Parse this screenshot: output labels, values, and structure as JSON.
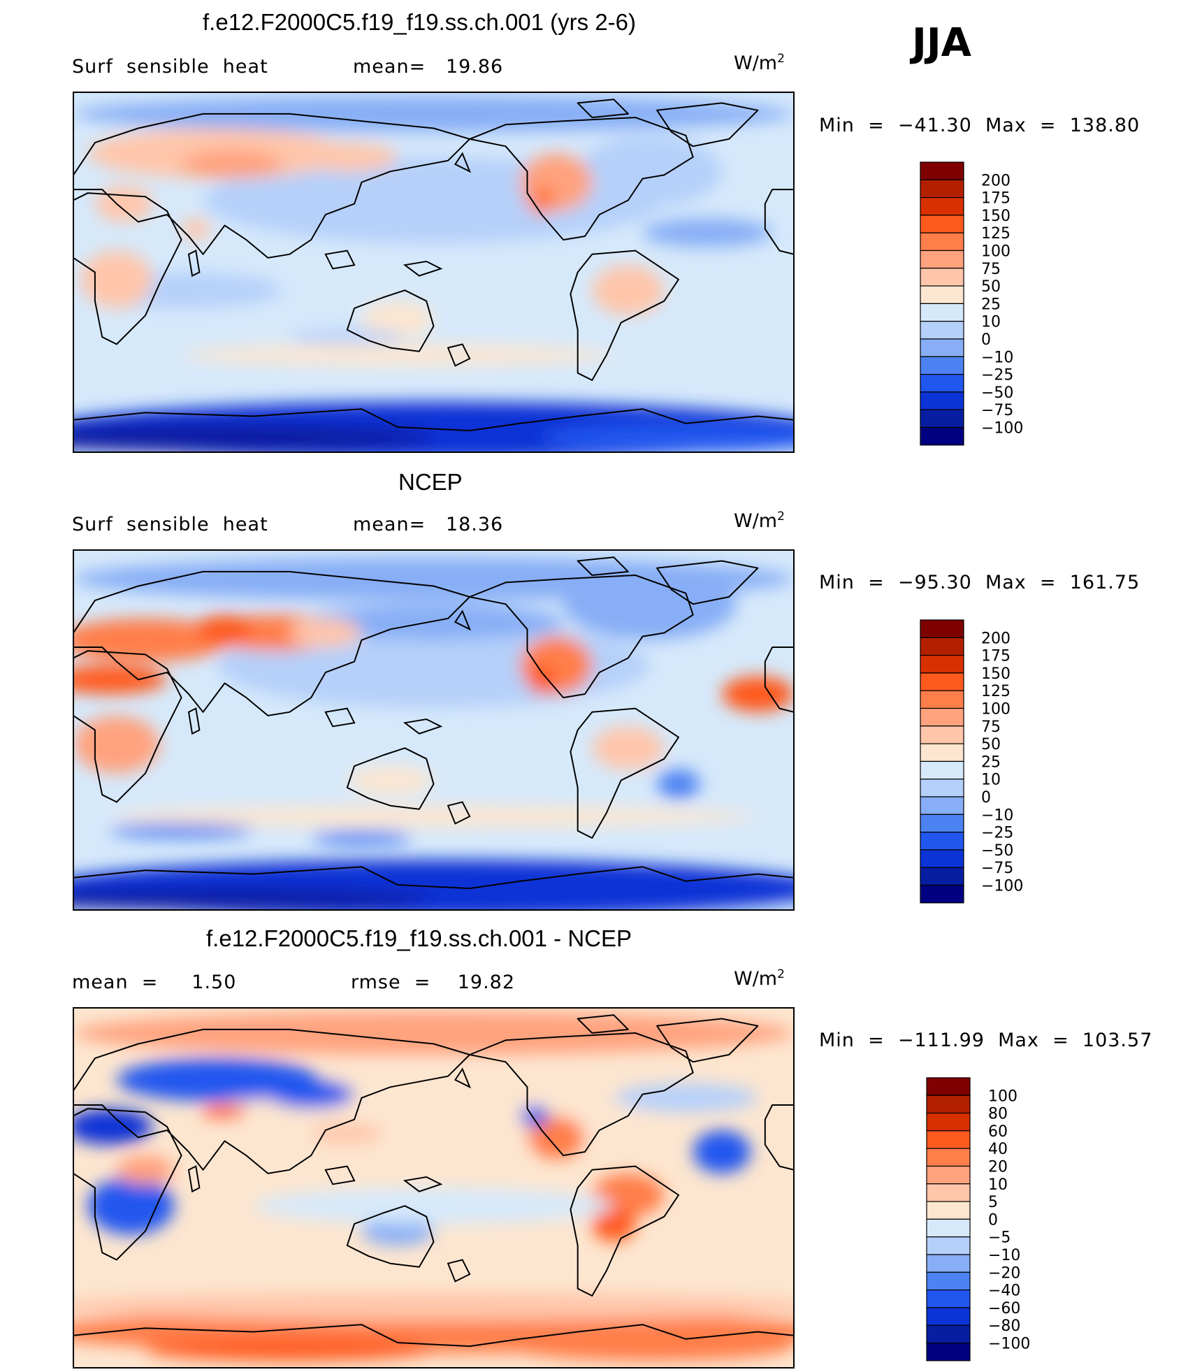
{
  "season": "JJA",
  "units_base": "W/m",
  "units_exp": "2",
  "panels": [
    {
      "title": "f.e12.F2000C5.f19_f19.ss.ch.001 (yrs 2-6)",
      "left_label": "Surf  sensible  heat",
      "mid_label": "mean=   19.86",
      "minmax": "Min  =  −41.30  Max  =  138.80",
      "levels": [
        "200",
        "175",
        "150",
        "125",
        "100",
        "75",
        "50",
        "25",
        "10",
        "0",
        "−10",
        "−25",
        "−50",
        "−75",
        "−100"
      ],
      "colors": [
        "#7f0000",
        "#b32000",
        "#d93000",
        "#ff5a1e",
        "#ff7e4a",
        "#ffa27e",
        "#ffc6aa",
        "#fde6d0",
        "#d6e9fb",
        "#b5d0fa",
        "#87aef6",
        "#4d82f3",
        "#2257ef",
        "#0c33d6",
        "#071ea2",
        "#000080"
      ]
    },
    {
      "title": "NCEP",
      "left_label": "Surf  sensible  heat",
      "mid_label": "mean=   18.36",
      "minmax": "Min  =  −95.30  Max  =  161.75",
      "levels": [
        "200",
        "175",
        "150",
        "125",
        "100",
        "75",
        "50",
        "25",
        "10",
        "0",
        "−10",
        "−25",
        "−50",
        "−75",
        "−100"
      ],
      "colors": [
        "#7f0000",
        "#b32000",
        "#d93000",
        "#ff5a1e",
        "#ff7e4a",
        "#ffa27e",
        "#ffc6aa",
        "#fde6d0",
        "#d6e9fb",
        "#b5d0fa",
        "#87aef6",
        "#4d82f3",
        "#2257ef",
        "#0c33d6",
        "#071ea2",
        "#000080"
      ]
    },
    {
      "title": "f.e12.F2000C5.f19_f19.ss.ch.001 - NCEP",
      "left_label": "mean  =     1.50",
      "mid_label": "rmse  =    19.82",
      "minmax": "Min  =  −111.99  Max  =  103.57",
      "levels": [
        "100",
        "80",
        "60",
        "40",
        "20",
        "10",
        "5",
        "0",
        "−5",
        "−10",
        "−20",
        "−40",
        "−60",
        "−80",
        "−100"
      ],
      "colors": [
        "#7f0000",
        "#b32000",
        "#d93000",
        "#ff5a1e",
        "#ff7e4a",
        "#ffa27e",
        "#ffc6aa",
        "#fde6d0",
        "#d6e9fb",
        "#b5d0fa",
        "#87aef6",
        "#4d82f3",
        "#2257ef",
        "#0c33d6",
        "#071ea2",
        "#000080"
      ]
    }
  ],
  "chart_data": [
    {
      "type": "heatmap",
      "title": "f.e12.F2000C5.f19_f19.ss.ch.001 (yrs 2-6)",
      "subtitle": "Surf sensible heat",
      "mean": 19.86,
      "min": -41.3,
      "max": 138.8,
      "units": "W/m2",
      "contour_levels": [
        -100,
        -75,
        -50,
        -25,
        -10,
        0,
        10,
        25,
        50,
        75,
        100,
        125,
        150,
        175,
        200
      ]
    },
    {
      "type": "heatmap",
      "title": "NCEP",
      "subtitle": "Surf sensible heat",
      "mean": 18.36,
      "min": -95.3,
      "max": 161.75,
      "units": "W/m2",
      "contour_levels": [
        -100,
        -75,
        -50,
        -25,
        -10,
        0,
        10,
        25,
        50,
        75,
        100,
        125,
        150,
        175,
        200
      ]
    },
    {
      "type": "heatmap",
      "title": "f.e12.F2000C5.f19_f19.ss.ch.001 - NCEP",
      "mean": 1.5,
      "rmse": 19.82,
      "min": -111.99,
      "max": 103.57,
      "units": "W/m2",
      "contour_levels": [
        -100,
        -80,
        -60,
        -40,
        -20,
        -10,
        -5,
        0,
        5,
        10,
        20,
        40,
        60,
        80,
        100
      ]
    }
  ]
}
